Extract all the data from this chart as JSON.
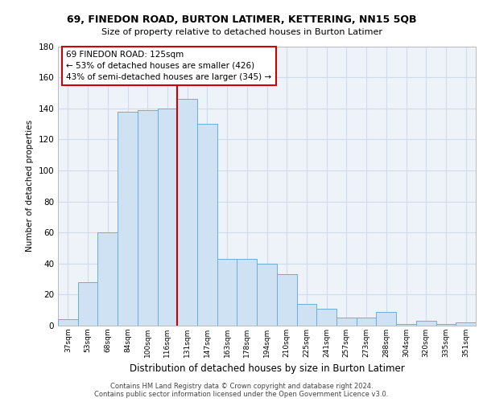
{
  "title1": "69, FINEDON ROAD, BURTON LATIMER, KETTERING, NN15 5QB",
  "title2": "Size of property relative to detached houses in Burton Latimer",
  "xlabel": "Distribution of detached houses by size in Burton Latimer",
  "ylabel": "Number of detached properties",
  "bar_labels": [
    "37sqm",
    "53sqm",
    "68sqm",
    "84sqm",
    "100sqm",
    "116sqm",
    "131sqm",
    "147sqm",
    "163sqm",
    "178sqm",
    "194sqm",
    "210sqm",
    "225sqm",
    "241sqm",
    "257sqm",
    "273sqm",
    "288sqm",
    "304sqm",
    "320sqm",
    "335sqm",
    "351sqm"
  ],
  "bar_values": [
    4,
    28,
    60,
    138,
    139,
    140,
    146,
    130,
    43,
    43,
    40,
    33,
    14,
    11,
    5,
    5,
    9,
    1,
    3,
    1,
    2
  ],
  "bar_color": "#cfe2f3",
  "bar_edge_color": "#6baed6",
  "grid_color": "#d0dcea",
  "bg_color": "#eef2f9",
  "vline_index": 6,
  "annotation_text": "69 FINEDON ROAD: 125sqm\n← 53% of detached houses are smaller (426)\n43% of semi-detached houses are larger (345) →",
  "annotation_box_color": "#ffffff",
  "annotation_box_edge": "#cc0000",
  "vline_color": "#cc0000",
  "footer1": "Contains HM Land Registry data © Crown copyright and database right 2024.",
  "footer2": "Contains public sector information licensed under the Open Government Licence v3.0.",
  "ylim": [
    0,
    180
  ],
  "yticks": [
    0,
    20,
    40,
    60,
    80,
    100,
    120,
    140,
    160,
    180
  ]
}
